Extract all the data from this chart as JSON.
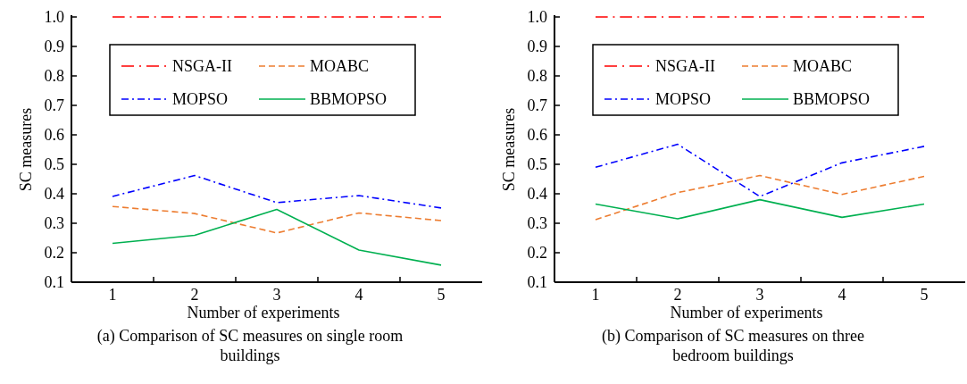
{
  "chart_data": [
    {
      "type": "line",
      "x": [
        1,
        2,
        3,
        4,
        5
      ],
      "xlim": [
        0.5,
        5.5
      ],
      "xticks": [
        1,
        {
          "value": 1.5,
          "label": null
        },
        2,
        {
          "value": 2.5,
          "label": null
        },
        3,
        {
          "value": 3.5,
          "label": null
        },
        4,
        {
          "value": 4.5,
          "label": null
        },
        5
      ],
      "ylim": [
        0.1,
        1.0
      ],
      "yticks": [
        {
          "value": 0.1,
          "label": "0.1"
        },
        {
          "value": 0.2,
          "label": "0.2"
        },
        {
          "value": 0.3,
          "label": "0.3"
        },
        {
          "value": 0.4,
          "label": "0.4"
        },
        {
          "value": 0.5,
          "label": "0.5"
        },
        {
          "value": 0.6,
          "label": "0.6"
        },
        {
          "value": 0.7,
          "label": "0.7"
        },
        {
          "value": 0.8,
          "label": "0.8"
        },
        {
          "value": 0.9,
          "label": "0.9"
        },
        {
          "value": 1.0,
          "label": "1.0"
        }
      ],
      "xlabel": "Number of experiments",
      "ylabel": "SC measures",
      "legend": "top",
      "grid": false,
      "marker": "none",
      "series": [
        {
          "name": "NSGA-II",
          "color": "#ff0000",
          "line_style": "dashdot-long",
          "values": [
            1.0,
            1.0,
            1.0,
            1.0,
            1.0
          ]
        },
        {
          "name": "MOABC",
          "color": "#ed7d31",
          "line_style": "dashed",
          "values": [
            0.357,
            0.333,
            0.267,
            0.335,
            0.309
          ]
        },
        {
          "name": "MOPSO",
          "color": "#0000ff",
          "line_style": "dashdot",
          "values": [
            0.391,
            0.462,
            0.37,
            0.394,
            0.352
          ]
        },
        {
          "name": "BBMOPSO",
          "color": "#00b050",
          "line_style": "solid",
          "values": [
            0.232,
            0.259,
            0.347,
            0.209,
            0.158
          ]
        }
      ],
      "annotations": [
        "(a) Comparison of SC measures on single room buildings"
      ]
    },
    {
      "type": "line",
      "x": [
        1,
        2,
        3,
        4,
        5
      ],
      "xlim": [
        0.5,
        5.5
      ],
      "xticks": [
        1,
        {
          "value": 1.5,
          "label": null
        },
        2,
        {
          "value": 2.5,
          "label": null
        },
        3,
        {
          "value": 3.5,
          "label": null
        },
        4,
        {
          "value": 4.5,
          "label": null
        },
        5
      ],
      "ylim": [
        0.1,
        1.0
      ],
      "yticks": [
        {
          "value": 0.1,
          "label": "0.1"
        },
        {
          "value": 0.2,
          "label": "0.2"
        },
        {
          "value": 0.3,
          "label": "0.3"
        },
        {
          "value": 0.4,
          "label": "0.4"
        },
        {
          "value": 0.5,
          "label": "0.5"
        },
        {
          "value": 0.6,
          "label": "0.6"
        },
        {
          "value": 0.7,
          "label": "0.7"
        },
        {
          "value": 0.8,
          "label": "0.8"
        },
        {
          "value": 0.9,
          "label": "0.9"
        },
        {
          "value": 1.0,
          "label": "1.0"
        }
      ],
      "xlabel": "Number of experiments",
      "ylabel": "SC measures",
      "legend": "top",
      "grid": false,
      "marker": "none",
      "series": [
        {
          "name": "NSGA-II",
          "color": "#ff0000",
          "line_style": "dashdot-long",
          "values": [
            1.0,
            1.0,
            1.0,
            1.0,
            1.0
          ]
        },
        {
          "name": "MOABC",
          "color": "#ed7d31",
          "line_style": "dashed",
          "values": [
            0.312,
            0.404,
            0.462,
            0.398,
            0.459
          ]
        },
        {
          "name": "MOPSO",
          "color": "#0000ff",
          "line_style": "dashdot",
          "values": [
            0.49,
            0.568,
            0.391,
            0.505,
            0.561
          ]
        },
        {
          "name": "BBMOPSO",
          "color": "#00b050",
          "line_style": "solid",
          "values": [
            0.365,
            0.315,
            0.38,
            0.32,
            0.365
          ]
        }
      ],
      "annotations": [
        "(b) Comparison of SC measures on three bedroom buildings"
      ]
    }
  ]
}
